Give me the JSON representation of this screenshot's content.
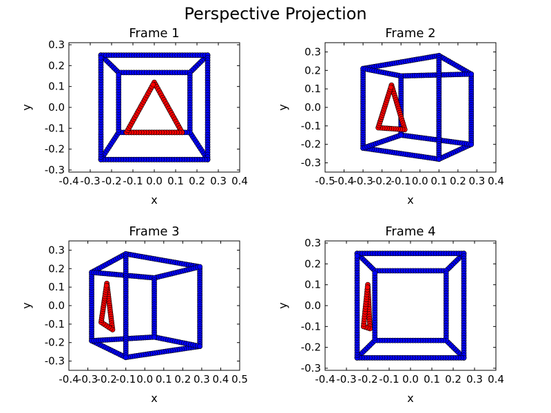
{
  "figure": {
    "title": "Perspective Projection"
  },
  "chart_data": [
    {
      "type": "scatter",
      "title": "Frame 1",
      "xlabel": "x",
      "ylabel": "y",
      "xlim": [
        -0.4,
        0.4
      ],
      "ylim": [
        -0.31,
        0.31
      ],
      "xticks": [
        "-0.4",
        "-0.3",
        "-0.2",
        "-0.1",
        "0.0",
        "0.1",
        "0.2",
        "0.3",
        "0.4"
      ],
      "yticks": [
        "-0.3",
        "-0.2",
        "-0.1",
        "0.0",
        "0.1",
        "0.2",
        "0.3"
      ],
      "grid": false,
      "cube": {
        "outer": [
          [
            -0.25,
            0.25
          ],
          [
            0.25,
            0.25
          ],
          [
            0.25,
            -0.25
          ],
          [
            -0.25,
            -0.25
          ]
        ],
        "inner": [
          [
            -0.167,
            0.167
          ],
          [
            0.167,
            0.167
          ],
          [
            0.167,
            -0.12
          ],
          [
            -0.167,
            -0.12
          ]
        ]
      },
      "triangle": [
        [
          0.0,
          0.12
        ],
        [
          0.13,
          -0.12
        ],
        [
          -0.13,
          -0.12
        ]
      ],
      "colors": {
        "cube": "#0000ff",
        "triangle": "#ff0000",
        "edge": "#000000"
      }
    },
    {
      "type": "scatter",
      "title": "Frame 2",
      "xlabel": "x",
      "ylabel": "y",
      "xlim": [
        -0.5,
        0.4
      ],
      "ylim": [
        -0.35,
        0.35
      ],
      "xticks": [
        "-0.5",
        "-0.4",
        "-0.3",
        "-0.2",
        "-0.1",
        "0.0",
        "0.1",
        "0.2",
        "0.3",
        "0.4"
      ],
      "yticks": [
        "-0.3",
        "-0.2",
        "-0.1",
        "0.0",
        "0.1",
        "0.2",
        "0.3"
      ],
      "grid": false,
      "cube": {
        "outer": [
          [
            -0.3,
            0.21
          ],
          [
            0.1,
            0.28
          ],
          [
            0.27,
            0.18
          ],
          [
            0.27,
            -0.2
          ],
          [
            0.1,
            -0.28
          ],
          [
            -0.3,
            -0.22
          ]
        ],
        "hidden": [
          [
            -0.3,
            0.21
          ],
          [
            -0.1,
            0.17
          ],
          [
            0.27,
            0.18
          ]
        ],
        "inner_front": [
          [
            -0.1,
            0.17
          ],
          [
            -0.1,
            -0.15
          ],
          [
            0.27,
            -0.2
          ]
        ],
        "inner_back": [
          [
            0.1,
            0.28
          ],
          [
            0.1,
            -0.28
          ]
        ],
        "inner_bottom": [
          [
            -0.3,
            -0.22
          ],
          [
            -0.1,
            -0.15
          ]
        ]
      },
      "triangle": [
        [
          -0.15,
          0.12
        ],
        [
          -0.08,
          -0.12
        ],
        [
          -0.22,
          -0.11
        ]
      ],
      "colors": {
        "cube": "#0000ff",
        "triangle": "#ff0000",
        "edge": "#000000"
      }
    },
    {
      "type": "scatter",
      "title": "Frame 3",
      "xlabel": "x",
      "ylabel": "y",
      "xlim": [
        -0.4,
        0.5
      ],
      "ylim": [
        -0.35,
        0.35
      ],
      "xticks": [
        "-0.4",
        "-0.3",
        "-0.2",
        "-0.1",
        "0.0",
        "0.1",
        "0.2",
        "0.3",
        "0.4",
        "0.5"
      ],
      "yticks": [
        "-0.3",
        "-0.2",
        "-0.1",
        "0.0",
        "0.1",
        "0.2",
        "0.3"
      ],
      "grid": false,
      "cube": {
        "outer": [
          [
            -0.28,
            0.18
          ],
          [
            -0.1,
            0.28
          ],
          [
            0.29,
            0.21
          ],
          [
            0.29,
            -0.22
          ],
          [
            -0.1,
            -0.28
          ],
          [
            -0.28,
            -0.19
          ]
        ],
        "front_bottom": [
          [
            -0.28,
            -0.19
          ],
          [
            0.05,
            -0.17
          ],
          [
            0.29,
            -0.22
          ]
        ],
        "front_top": [
          [
            -0.28,
            0.18
          ],
          [
            0.05,
            0.15
          ],
          [
            0.29,
            0.21
          ]
        ],
        "front_mid": [
          [
            0.05,
            0.15
          ],
          [
            0.05,
            -0.17
          ]
        ],
        "back_left": [
          [
            -0.1,
            0.28
          ],
          [
            -0.1,
            -0.28
          ]
        ]
      },
      "triangle": [
        [
          -0.2,
          0.12
        ],
        [
          -0.17,
          -0.13
        ],
        [
          -0.23,
          -0.09
        ]
      ],
      "colors": {
        "cube": "#0000ff",
        "triangle": "#ff0000",
        "edge": "#000000"
      }
    },
    {
      "type": "scatter",
      "title": "Frame 4",
      "xlabel": "x",
      "ylabel": "y",
      "xlim": [
        -0.4,
        0.4
      ],
      "ylim": [
        -0.31,
        0.31
      ],
      "xticks": [
        "-0.4",
        "-0.3",
        "-0.2",
        "-0.1",
        "0.0",
        "0.1",
        "0.2",
        "0.3",
        "0.4"
      ],
      "yticks": [
        "-0.3",
        "-0.2",
        "-0.1",
        "0.0",
        "0.1",
        "0.2",
        "0.3"
      ],
      "grid": false,
      "cube": {
        "outer": [
          [
            -0.25,
            0.25
          ],
          [
            0.25,
            0.25
          ],
          [
            0.25,
            -0.25
          ],
          [
            -0.25,
            -0.25
          ]
        ],
        "inner": [
          [
            -0.167,
            0.167
          ],
          [
            0.167,
            0.167
          ],
          [
            0.167,
            -0.167
          ],
          [
            -0.167,
            -0.167
          ]
        ]
      },
      "triangle": [
        [
          -0.2,
          0.1
        ],
        [
          -0.19,
          -0.11
        ],
        [
          -0.22,
          -0.1
        ]
      ],
      "colors": {
        "cube": "#0000ff",
        "triangle": "#ff0000",
        "edge": "#000000"
      }
    }
  ]
}
